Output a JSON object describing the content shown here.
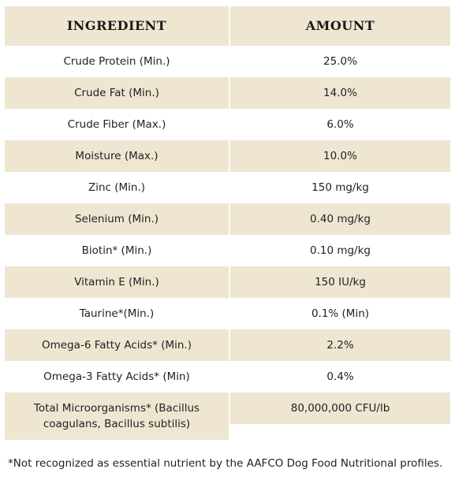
{
  "table": {
    "header": [
      "INGREDIENT",
      "AMOUNT"
    ],
    "rows": [
      [
        "Crude Protein (Min.)",
        "25.0%"
      ],
      [
        "Crude Fat (Min.)",
        "14.0%"
      ],
      [
        "Crude Fiber (Max.)",
        "6.0%"
      ],
      [
        "Moisture (Max.)",
        "10.0%"
      ],
      [
        "Zinc (Min.)",
        "150 mg/kg"
      ],
      [
        "Selenium (Min.)",
        "0.40 mg/kg"
      ],
      [
        "Biotin* (Min.)",
        "0.10 mg/kg"
      ],
      [
        "Vitamin E (Min.)",
        "150 IU/kg"
      ],
      [
        "Taurine*(Min.)",
        "0.1% (Min)"
      ],
      [
        "Omega-6 Fatty Acids* (Min.)",
        "2.2%"
      ],
      [
        "Omega-3 Fatty Acids* (Min)",
        "0.4%"
      ],
      [
        "Total Microorganisms* (Bacillus coagulans, Bacillus subtilis)",
        "80,000,000 CFU/lb"
      ]
    ]
  },
  "footnote": "*Not recognized as essential nutrient by the AAFCO Dog Food Nutritional profiles."
}
